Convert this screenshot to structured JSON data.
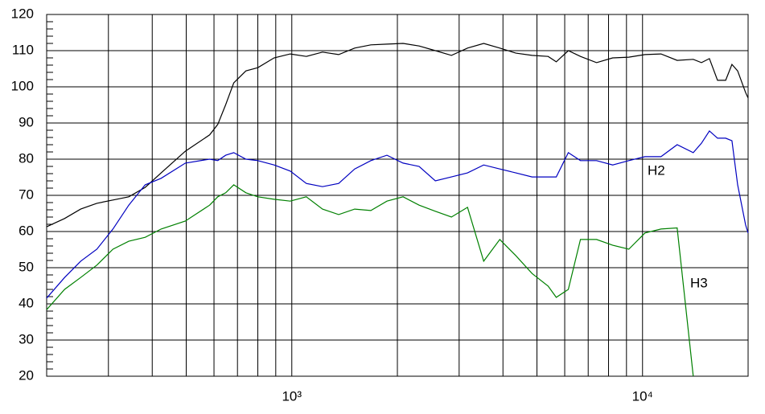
{
  "chart_data": {
    "type": "line",
    "xscale": "log",
    "xlim": [
      200,
      20000
    ],
    "ylim": [
      20,
      120
    ],
    "yticks": [
      20,
      30,
      40,
      50,
      60,
      70,
      80,
      90,
      100,
      110,
      120
    ],
    "xticks": [
      {
        "value": 1000,
        "label": "10³"
      },
      {
        "value": 10000,
        "label": "10⁴"
      }
    ],
    "xminor": [
      300,
      400,
      500,
      600,
      700,
      800,
      900,
      2000,
      3000,
      4000,
      5000,
      6000,
      7000,
      8000,
      9000
    ],
    "grid": true,
    "x": [
      200,
      225,
      250,
      278,
      309,
      343,
      382,
      424,
      497,
      583,
      615,
      648,
      683,
      740,
      800,
      890,
      990,
      1100,
      1223,
      1360,
      1511,
      1680,
      1867,
      2076,
      2307,
      2566,
      2852,
      3170,
      3524,
      3917,
      4355,
      4841,
      5382,
      5675,
      6144,
      6653,
      7396,
      8222,
      9140,
      10160,
      11290,
      12550,
      13950,
      14720,
      15510,
      16360,
      17260,
      17990,
      18670,
      19680,
      20000
    ],
    "series": [
      {
        "color": "#000000",
        "values": [
          61.3,
          63.6,
          66.2,
          67.8,
          68.7,
          69.6,
          72.2,
          76.2,
          82.2,
          86.7,
          89.6,
          95.1,
          101.1,
          104.4,
          105.3,
          108,
          109.1,
          108.4,
          109.6,
          108.9,
          110.7,
          111.6,
          111.8,
          112,
          111.3,
          110,
          108.7,
          110.7,
          112,
          110.7,
          109.3,
          108.7,
          108.4,
          106.9,
          110,
          108.4,
          106.7,
          108,
          108.2,
          108.9,
          109.1,
          107.3,
          107.6,
          106.7,
          107.8,
          101.8,
          101.8,
          106.2,
          104.4,
          98.4,
          96.9
        ]
      },
      {
        "name": "H2",
        "color": "#0000c0",
        "values": [
          41.6,
          47.3,
          51.8,
          55.1,
          60.7,
          67.3,
          72.9,
          74.7,
          78.9,
          80,
          79.6,
          81.1,
          81.8,
          80,
          79.6,
          78.4,
          76.7,
          73.3,
          72.4,
          73.3,
          77.3,
          79.6,
          81.1,
          78.9,
          78,
          74,
          75.1,
          76.2,
          78.4,
          77.3,
          76.2,
          75.1,
          75.1,
          75.1,
          81.8,
          79.6,
          79.6,
          78.4,
          79.6,
          80.7,
          80.7,
          84,
          81.8,
          84.4,
          87.8,
          85.8,
          85.8,
          85.1,
          72.9,
          61.8,
          59.6
        ]
      },
      {
        "name": "H3",
        "color": "#008000",
        "values": [
          38.4,
          44,
          47.3,
          50.7,
          55.1,
          57.3,
          58.4,
          60.7,
          62.9,
          67.3,
          69.6,
          70.7,
          72.9,
          70.7,
          69.6,
          68.9,
          68.4,
          69.6,
          66.2,
          64.7,
          66.2,
          65.8,
          68.4,
          69.6,
          67.3,
          65.6,
          64,
          66.7,
          51.8,
          57.8,
          53.3,
          48.4,
          44.9,
          41.8,
          44,
          57.8,
          57.8,
          56.2,
          55.1,
          59.6,
          60.7,
          61,
          20,
          null,
          null,
          null,
          null,
          null,
          null,
          null,
          null
        ]
      }
    ]
  }
}
